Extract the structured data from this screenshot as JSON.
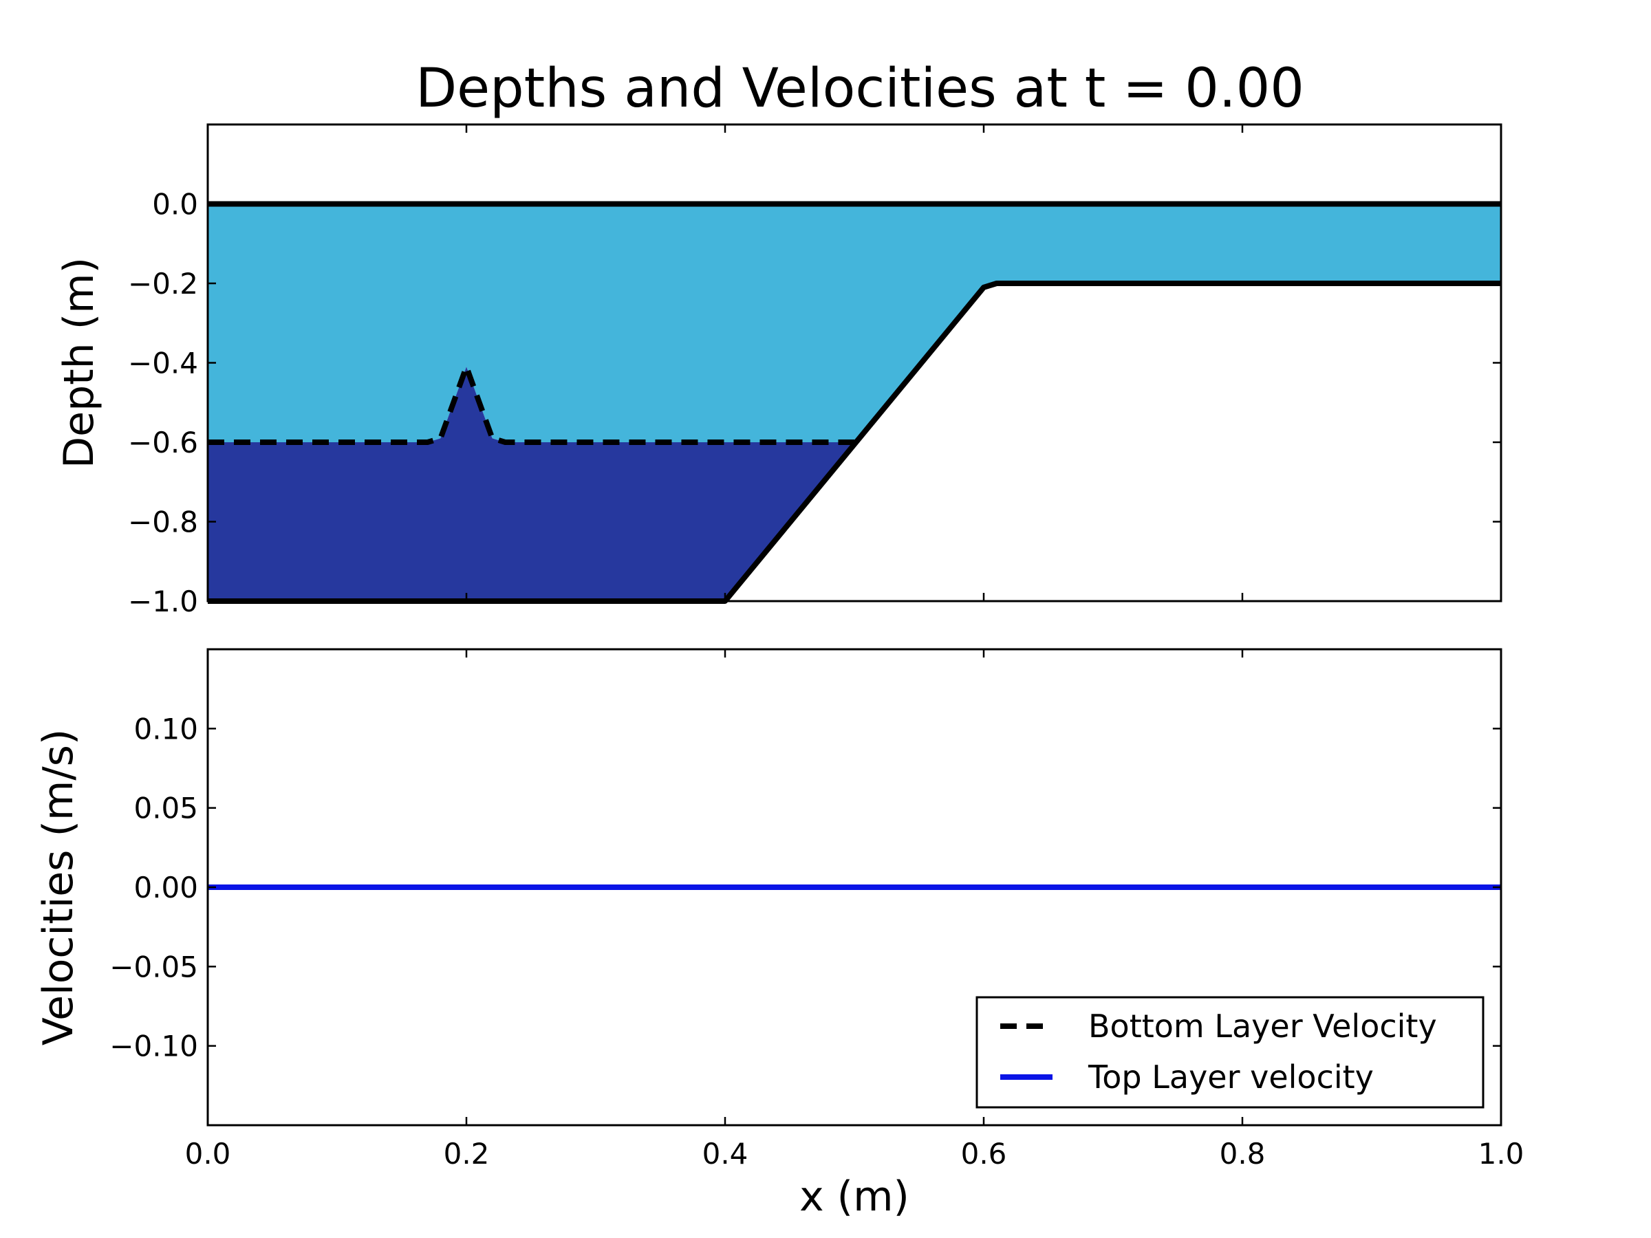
{
  "chart_data": [
    {
      "type": "area",
      "title": "Depths and Velocities at t = 0.00",
      "xlabel": "",
      "ylabel": "Depth (m)",
      "xlim": [
        0.0,
        1.0
      ],
      "ylim": [
        -1.0,
        0.2
      ],
      "xticks": [
        0.0,
        0.2,
        0.4,
        0.6,
        0.8,
        1.0
      ],
      "yticks": [
        0.0,
        -0.2,
        -0.4,
        -0.6,
        -0.8,
        -1.0
      ],
      "ytick_labels": [
        "0.0",
        "−0.2",
        "−0.4",
        "−0.6",
        "−0.8",
        "−1.0"
      ],
      "surface": {
        "x": [
          0.0,
          1.0
        ],
        "y": [
          0.0,
          0.0
        ]
      },
      "interface": {
        "x": [
          0.0,
          0.17,
          0.18,
          0.19,
          0.2,
          0.21,
          0.22,
          0.23,
          0.5
        ],
        "y": [
          -0.6,
          -0.6,
          -0.59,
          -0.5,
          -0.41,
          -0.5,
          -0.59,
          -0.6,
          -0.6
        ]
      },
      "bathymetry": {
        "x": [
          0.0,
          0.4,
          0.6,
          0.61,
          1.0
        ],
        "y": [
          -1.0,
          -1.0,
          -0.21,
          -0.2,
          -0.2
        ]
      },
      "colors": {
        "top_layer": "#44b5db",
        "bottom_layer": "#26389e",
        "line": "#000000"
      }
    },
    {
      "type": "line",
      "xlabel": "x (m)",
      "ylabel": "Velocities (m/s)",
      "xlim": [
        0.0,
        1.0
      ],
      "ylim": [
        -0.15,
        0.15
      ],
      "xticks": [
        0.0,
        0.2,
        0.4,
        0.6,
        0.8,
        1.0
      ],
      "xtick_labels": [
        "0.0",
        "0.2",
        "0.4",
        "0.6",
        "0.8",
        "1.0"
      ],
      "yticks": [
        0.1,
        0.05,
        0.0,
        -0.05,
        -0.1
      ],
      "ytick_labels": [
        "0.10",
        "0.05",
        "0.00",
        "−0.05",
        "−0.10"
      ],
      "series": [
        {
          "name": "Bottom Layer Velocity",
          "style": "dashed",
          "color": "#000000",
          "x": [
            0.0,
            1.0
          ],
          "y": [
            0.0,
            0.0
          ]
        },
        {
          "name": "Top Layer velocity",
          "style": "solid",
          "color": "#0a14e6",
          "x": [
            0.0,
            1.0
          ],
          "y": [
            0.0,
            0.0
          ]
        }
      ],
      "legend_position": "lower-right"
    }
  ]
}
